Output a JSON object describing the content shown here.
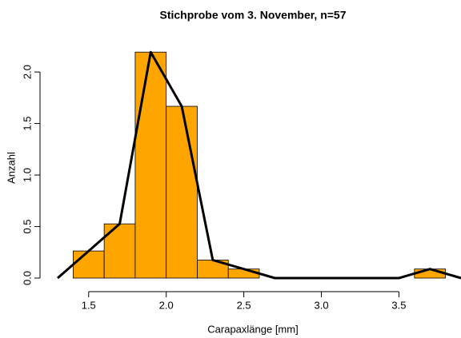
{
  "chart_data": {
    "type": "histogram",
    "title": "Stichprobe vom 3. November, n=57",
    "xlabel": "Carapaxlänge [mm]",
    "ylabel": "Anzahl",
    "bins": [
      1.4,
      1.6,
      1.8,
      2.0,
      2.2,
      2.4,
      2.6,
      2.8,
      3.0,
      3.2,
      3.4,
      3.6,
      3.8
    ],
    "values": [
      0.263,
      0.526,
      2.193,
      1.667,
      0.175,
      0.088,
      0,
      0,
      0,
      0,
      0,
      0.088
    ],
    "color": "#ffa500",
    "line": {
      "color": "#000000",
      "x": [
        1.3,
        1.5,
        1.7,
        1.9,
        2.1,
        2.3,
        2.5,
        2.7,
        2.9,
        3.1,
        3.3,
        3.5,
        3.7,
        3.9
      ],
      "y": [
        0,
        0.263,
        0.526,
        2.193,
        1.667,
        0.175,
        0.088,
        0,
        0,
        0,
        0,
        0,
        0.088,
        0
      ]
    },
    "xlim": [
      1.3,
      3.9
    ],
    "ylim": [
      0,
      2.28
    ],
    "xticks": [
      1.5,
      {
        "value": 2,
        "label": "2.0"
      },
      2.5,
      {
        "value": 3,
        "label": "3.0"
      },
      3.5
    ],
    "yticks": [
      {
        "value": 0,
        "label": "0.0"
      },
      0.5,
      {
        "value": 1,
        "label": "1.0"
      },
      1.5,
      {
        "value": 2,
        "label": "2.0"
      }
    ]
  }
}
